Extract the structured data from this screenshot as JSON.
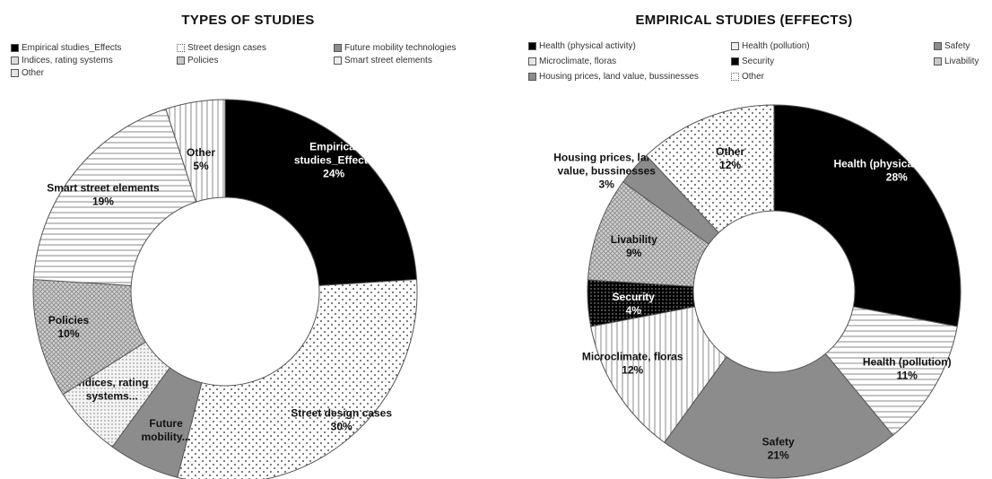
{
  "chart_data": [
    {
      "type": "pie",
      "title": "TYPES OF STUDIES",
      "donut": true,
      "legend_position": "top",
      "slices": [
        {
          "label": "Empirical studies_Effects",
          "chart_label": [
            "Empirical",
            "studies_Effects"
          ],
          "value": 24,
          "value_text": "24%",
          "pattern": "solid-black"
        },
        {
          "label": "Street design cases",
          "chart_label": [
            "Street design cases"
          ],
          "value": 30,
          "value_text": "30%",
          "pattern": "dots"
        },
        {
          "label": "Future mobility technologies",
          "chart_label": [
            "Future",
            "mobility..."
          ],
          "value": 6,
          "value_text": "",
          "pattern": "solid-gray"
        },
        {
          "label": "Indices, rating systems",
          "chart_label": [
            "Indices, rating",
            "systems..."
          ],
          "value": 6,
          "value_text": "",
          "pattern": "fine-dots"
        },
        {
          "label": "Policies",
          "chart_label": [
            "Policies"
          ],
          "value": 10,
          "value_text": "10%",
          "pattern": "crosshatch"
        },
        {
          "label": "Smart street elements",
          "chart_label": [
            "Smart street elements"
          ],
          "value": 19,
          "value_text": "19%",
          "pattern": "hlines"
        },
        {
          "label": "Other",
          "chart_label": [
            "Other"
          ],
          "value": 5,
          "value_text": "5%",
          "pattern": "vlines"
        }
      ]
    },
    {
      "type": "pie",
      "title": "EMPIRICAL STUDIES  (EFFECTS)",
      "donut": true,
      "legend_position": "top",
      "slices": [
        {
          "label": "Health (physical activity)",
          "chart_label": [
            "Health (physical activity)"
          ],
          "value": 28,
          "value_text": "28%",
          "pattern": "solid-black"
        },
        {
          "label": "Health (pollution)",
          "chart_label": [
            "Health (pollution)"
          ],
          "value": 11,
          "value_text": "11%",
          "pattern": "hlines"
        },
        {
          "label": "Safety",
          "chart_label": [
            "Safety"
          ],
          "value": 21,
          "value_text": "21%",
          "pattern": "solid-gray"
        },
        {
          "label": "Microclimate, floras",
          "chart_label": [
            "Microclimate, floras"
          ],
          "value": 12,
          "value_text": "12%",
          "pattern": "vlines"
        },
        {
          "label": "Security",
          "chart_label": [
            "Security"
          ],
          "value": 4,
          "value_text": "4%",
          "pattern": "black-dots"
        },
        {
          "label": "Livability",
          "chart_label": [
            "Livability"
          ],
          "value": 9,
          "value_text": "9%",
          "pattern": "crosshatch"
        },
        {
          "label": "Housing prices, land value, bussinesses",
          "chart_label": [
            "Housing prices, land",
            "value, bussinesses"
          ],
          "value": 3,
          "value_text": "3%",
          "pattern": "solid-gray"
        },
        {
          "label": "Other",
          "chart_label": [
            "Other"
          ],
          "value": 12,
          "value_text": "12%",
          "pattern": "dots"
        }
      ]
    }
  ]
}
